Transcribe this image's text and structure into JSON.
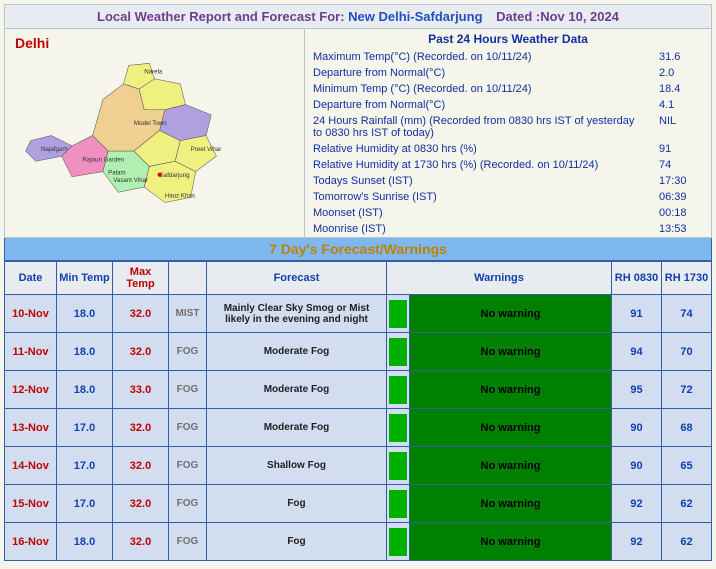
{
  "title": {
    "prefix": "Local Weather Report and Forecast For: ",
    "location": "New Delhi-Safdarjung",
    "date_label": "Dated :Nov 10, 2024"
  },
  "map_label": "Delhi",
  "past24": {
    "header": "Past 24 Hours Weather Data",
    "rows": [
      {
        "label": "Maximum Temp(°C) (Recorded. on 10/11/24)",
        "value": "31.6"
      },
      {
        "label": "Departure from Normal(°C)",
        "value": "2.0"
      },
      {
        "label": "Minimum Temp (°C) (Recorded. on 10/11/24)",
        "value": "18.4"
      },
      {
        "label": "Departure from Normal(°C)",
        "value": "4.1"
      },
      {
        "label": "24 Hours Rainfall (mm) (Recorded from 0830 hrs IST of yesterday to 0830 hrs IST of today)",
        "value": "NIL"
      },
      {
        "label": "Relative Humidity at 0830 hrs (%)",
        "value": "91"
      },
      {
        "label": "Relative Humidity at 1730 hrs (%) (Recorded. on 10/11/24)",
        "value": "74"
      },
      {
        "label": "Todays Sunset (IST)",
        "value": "17:30"
      },
      {
        "label": "Tomorrow's Sunrise (IST)",
        "value": "06:39"
      },
      {
        "label": "Moonset (IST)",
        "value": "00:18"
      },
      {
        "label": "Moonrise (IST)",
        "value": "13:53"
      }
    ]
  },
  "forecast": {
    "header": "7 Day's Forecast/Warnings",
    "columns": [
      "Date",
      "Min Temp",
      "Max Temp",
      "",
      "Forecast",
      "",
      "Warnings",
      "RH 0830",
      "RH 1730"
    ],
    "rows": [
      {
        "date": "10-Nov",
        "min": "18.0",
        "max": "32.0",
        "icon": "MIST",
        "fc": "Mainly Clear Sky Smog or Mist likely in the evening and night",
        "warn": "No warning",
        "rh1": "91",
        "rh2": "74"
      },
      {
        "date": "11-Nov",
        "min": "18.0",
        "max": "32.0",
        "icon": "FOG",
        "fc": "Moderate Fog",
        "warn": "No warning",
        "rh1": "94",
        "rh2": "70"
      },
      {
        "date": "12-Nov",
        "min": "18.0",
        "max": "33.0",
        "icon": "FOG",
        "fc": "Moderate Fog",
        "warn": "No warning",
        "rh1": "95",
        "rh2": "72"
      },
      {
        "date": "13-Nov",
        "min": "17.0",
        "max": "32.0",
        "icon": "FOG",
        "fc": "Moderate Fog",
        "warn": "No warning",
        "rh1": "90",
        "rh2": "68"
      },
      {
        "date": "14-Nov",
        "min": "17.0",
        "max": "32.0",
        "icon": "FOG",
        "fc": "Shallow Fog",
        "warn": "No warning",
        "rh1": "90",
        "rh2": "65"
      },
      {
        "date": "15-Nov",
        "min": "17.0",
        "max": "32.0",
        "icon": "FOG",
        "fc": "Fog",
        "warn": "No warning",
        "rh1": "92",
        "rh2": "62"
      },
      {
        "date": "16-Nov",
        "min": "18.0",
        "max": "32.0",
        "icon": "FOG",
        "fc": "Fog",
        "warn": "No warning",
        "rh1": "92",
        "rh2": "62"
      }
    ]
  },
  "colors": {
    "header_bg": "#e8ecf0",
    "header_text": "#6e3d8f",
    "link_blue": "#2050c0",
    "body_bg": "#f5f5eb",
    "border": "#b8c4d0",
    "data_text": "#1030a0",
    "forecast_hdr_bg": "#7fb8f0",
    "forecast_hdr_text": "#c08000",
    "cell_bg": "#d3ddf0",
    "cell_border": "#3060a0",
    "red": "#c00000",
    "blue": "#1040b0",
    "warn_green": "#008000",
    "box_green": "#00b000",
    "icon_grey": "#707070"
  }
}
